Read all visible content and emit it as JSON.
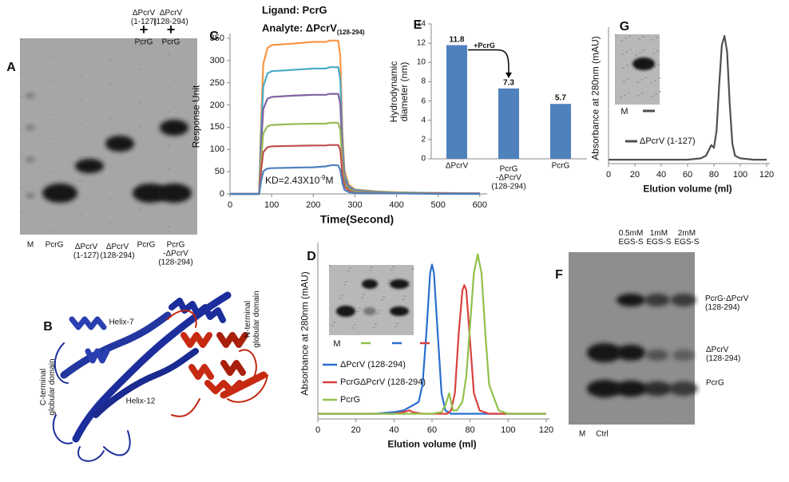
{
  "chart_data": [
    {
      "panel": "C",
      "type": "line",
      "title": "Ligand: PcrG",
      "subtitle": "Analyte: ΔPcrV",
      "subtitle_subscript": "(128-294)",
      "annotation": [
        "KD=2.43X10",
        "-9",
        "M"
      ],
      "x_label": "Time(Second)",
      "y_label": "Response Unit",
      "x": [
        0,
        70,
        75,
        80,
        90,
        100,
        150,
        200,
        230,
        240,
        250,
        260,
        265,
        270,
        275,
        285,
        300,
        350,
        400,
        500,
        600
      ],
      "xlim": [
        0,
        610
      ],
      "xticks": [
        0,
        100,
        200,
        300,
        400,
        500,
        600
      ],
      "ylim": [
        0,
        350
      ],
      "yticks": [
        0,
        50,
        100,
        150,
        200,
        250,
        300,
        350
      ],
      "series": [
        {
          "color": "#f79646",
          "values": [
            0,
            0,
            173,
            293,
            328,
            335,
            338,
            342,
            342,
            345,
            345,
            345,
            311,
            138,
            52,
            21,
            10,
            6,
            4,
            2,
            1
          ]
        },
        {
          "color": "#4bacc6",
          "values": [
            0,
            0,
            143,
            242,
            271,
            276,
            279,
            282,
            282,
            285,
            285,
            285,
            257,
            114,
            43,
            17,
            9,
            5,
            3,
            2,
            1
          ]
        },
        {
          "color": "#8064a2",
          "values": [
            0,
            0,
            113,
            191,
            214,
            218,
            221,
            223,
            223,
            225,
            225,
            225,
            203,
            90,
            34,
            14,
            7,
            4,
            2,
            1,
            1
          ]
        },
        {
          "color": "#9bbb59",
          "values": [
            0,
            0,
            80,
            136,
            152,
            155,
            157,
            158,
            158,
            160,
            160,
            160,
            144,
            64,
            24,
            10,
            5,
            3,
            2,
            1,
            0
          ]
        },
        {
          "color": "#c0504d",
          "values": [
            0,
            0,
            55,
            94,
            105,
            107,
            108,
            109,
            109,
            110,
            110,
            110,
            99,
            44,
            17,
            7,
            3,
            2,
            1,
            1,
            0
          ]
        },
        {
          "color": "#4f81bd",
          "values": [
            0,
            0,
            30,
            51,
            57,
            58,
            59,
            60,
            62,
            64,
            65,
            64,
            54,
            24,
            9,
            4,
            2,
            1,
            1,
            0,
            0
          ]
        }
      ]
    },
    {
      "panel": "D",
      "type": "line",
      "x_label": "Elution volume (ml)",
      "y_label": "Absorbance at 280nm (mAU)",
      "inset_lane": "M",
      "xlim": [
        0,
        120
      ],
      "xticks": [
        0,
        20,
        40,
        60,
        80,
        100,
        120
      ],
      "ylim": [
        0,
        100
      ],
      "series": [
        {
          "name": "ΔPcrV (128-294)",
          "color": "#2a6fd0",
          "x": [
            0,
            10,
            20,
            30,
            40,
            45,
            50,
            53,
            55,
            57,
            59,
            60,
            61,
            63,
            65,
            67,
            70,
            80,
            100,
            120
          ],
          "values": [
            3,
            3,
            3,
            3,
            4,
            5,
            8,
            10,
            20,
            50,
            85,
            90,
            85,
            50,
            15,
            5,
            3,
            3,
            3,
            3
          ]
        },
        {
          "name": "PcrGΔPcrV (128-294)",
          "color": "#d9413f",
          "x": [
            0,
            20,
            40,
            45,
            48,
            50,
            55,
            60,
            65,
            68,
            70,
            72,
            74,
            76,
            77,
            78,
            80,
            82,
            85,
            90,
            100,
            120
          ],
          "values": [
            3,
            3,
            3,
            4,
            5,
            4,
            3,
            3,
            3,
            3,
            5,
            15,
            50,
            75,
            78,
            75,
            45,
            15,
            5,
            3,
            3,
            3
          ]
        },
        {
          "name": "PcrG",
          "color": "#92c04a",
          "x": [
            0,
            20,
            40,
            50,
            60,
            65,
            67,
            69,
            70,
            71,
            73,
            76,
            78,
            80,
            82,
            84,
            86,
            88,
            90,
            95,
            100,
            120
          ],
          "values": [
            3,
            3,
            3,
            3,
            3,
            4,
            8,
            15,
            10,
            5,
            5,
            10,
            25,
            55,
            85,
            96,
            85,
            50,
            20,
            5,
            3,
            3
          ]
        }
      ]
    },
    {
      "panel": "E",
      "type": "bar",
      "y_label": "Hydrodynamic\ndiameter (nm)",
      "annotation": "+PcrG",
      "categories": [
        "ΔPcrV",
        "PcrG\n-ΔPcrV\n(128-294)",
        "PcrG"
      ],
      "values": [
        11.8,
        7.3,
        5.7
      ],
      "color": "#4f81bd",
      "ylim": [
        0,
        14
      ],
      "yticks": [
        0,
        2,
        4,
        6,
        8,
        10,
        12,
        14
      ]
    },
    {
      "panel": "G",
      "type": "line",
      "x_label": "Elution volume (ml)",
      "y_label": "Absorbance at 280nm (mAU)",
      "inset_lane": "M",
      "xlim": [
        0,
        120
      ],
      "xticks": [
        0,
        20,
        40,
        60,
        80,
        100,
        120
      ],
      "ylim": [
        0,
        100
      ],
      "series": [
        {
          "name": "ΔPcrV (1-127)",
          "color": "#505050",
          "x": [
            0,
            20,
            40,
            60,
            70,
            74,
            76,
            78,
            79,
            80,
            82,
            84,
            86,
            88,
            90,
            92,
            94,
            96,
            100,
            110,
            120
          ],
          "values": [
            3,
            3,
            3,
            3,
            4,
            6,
            10,
            14,
            13,
            12,
            25,
            60,
            90,
            97,
            85,
            45,
            15,
            6,
            4,
            3,
            3
          ]
        }
      ]
    }
  ],
  "gel_a": {
    "panel": "A",
    "top_labels": [
      {
        "protein": "ΔPcrV\n(1-127)",
        "plus": "+",
        "partner": "PcrG"
      },
      {
        "protein": "ΔPcrV\n(128-294)",
        "plus": "+",
        "partner": "PcrG"
      }
    ],
    "lanes": [
      "M",
      "PcrG",
      "ΔPcrV\n(1-127)",
      "ΔPcrV\n(128-294)",
      "PcrG",
      "PcrG\n-ΔPcrV\n(128-294)"
    ]
  },
  "structure_b": {
    "panel": "B",
    "labels": [
      "Helix-7",
      "Helix-12",
      "C-terminal\nglobular domain",
      "N-terminal\nglobular domain"
    ]
  },
  "gel_f": {
    "panel": "F",
    "top_labels": [
      "0.5mM\nEGS-S",
      "1mM\nEGS-S",
      "2mM\nEGS-S"
    ],
    "lanes": [
      "M",
      "Ctrl"
    ],
    "band_labels": [
      "PcrG-ΔPcrV\n(128-294)",
      "ΔPcrV\n(128-294)",
      "PcrG"
    ]
  }
}
